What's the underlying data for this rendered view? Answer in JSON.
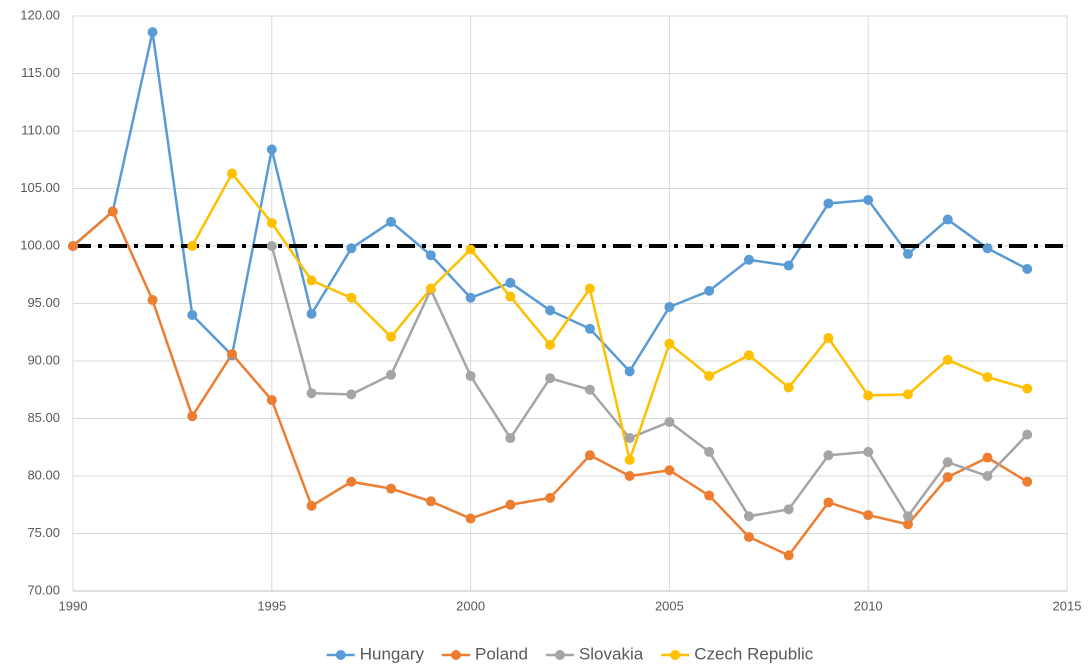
{
  "chart_data": {
    "type": "line",
    "x": [
      1990,
      1991,
      1992,
      1993,
      1994,
      1995,
      1996,
      1997,
      1998,
      1999,
      2000,
      2001,
      2002,
      2003,
      2004,
      2005,
      2006,
      2007,
      2008,
      2009,
      2010,
      2011,
      2012,
      2013,
      2014
    ],
    "series": [
      {
        "name": "Hungary",
        "color": "#5b9bd5",
        "values": [
          100,
          103,
          118.6,
          94,
          90.5,
          108.4,
          94.1,
          99.8,
          102.1,
          99.2,
          95.5,
          96.8,
          94.4,
          92.8,
          89.1,
          94.7,
          96.1,
          98.8,
          98.3,
          103.7,
          104,
          99.3,
          102.3,
          99.8,
          98
        ]
      },
      {
        "name": "Poland",
        "color": "#ed7d31",
        "values": [
          100,
          103,
          95.3,
          85.2,
          90.6,
          86.6,
          77.4,
          79.5,
          78.9,
          77.8,
          76.3,
          77.5,
          78.1,
          81.8,
          80,
          80.5,
          78.3,
          74.7,
          73.1,
          77.7,
          76.6,
          75.8,
          79.9,
          81.6,
          79.5
        ]
      },
      {
        "name": "Slovakia",
        "color": "#a5a5a5",
        "values": [
          null,
          null,
          null,
          null,
          null,
          100,
          87.2,
          87.1,
          88.8,
          96.2,
          88.7,
          83.3,
          88.5,
          87.5,
          83.3,
          84.7,
          82.1,
          76.5,
          77.1,
          81.8,
          82.1,
          76.5,
          81.2,
          80,
          83.6
        ]
      },
      {
        "name": "Czech Republic",
        "color": "#ffc000",
        "values": [
          null,
          null,
          null,
          100,
          106.3,
          102,
          97,
          95.5,
          92.1,
          96.3,
          99.7,
          95.6,
          91.4,
          96.3,
          81.4,
          91.5,
          88.7,
          90.5,
          87.7,
          92,
          87,
          87.1,
          90.1,
          88.6,
          87.6
        ]
      }
    ],
    "reference_line": {
      "value": 100,
      "color": "#000000"
    },
    "xlim": [
      1990,
      2015
    ],
    "xticks": [
      1990,
      1995,
      2000,
      2005,
      2010,
      2015
    ],
    "ylim": [
      70,
      120
    ],
    "yticks": [
      {
        "value": 70,
        "label": "70.00"
      },
      {
        "value": 75,
        "label": "75.00"
      },
      {
        "value": 80,
        "label": "80.00"
      },
      {
        "value": 85,
        "label": "85.00"
      },
      {
        "value": 90,
        "label": "90.00"
      },
      {
        "value": 95,
        "label": "95.00"
      },
      {
        "value": 100,
        "label": "100.00"
      },
      {
        "value": 105,
        "label": "105.00"
      },
      {
        "value": 110,
        "label": "110.00"
      },
      {
        "value": 115,
        "label": "115.00"
      },
      {
        "value": 120,
        "label": "120.00"
      }
    ],
    "grid": true,
    "legend": "bottom"
  }
}
